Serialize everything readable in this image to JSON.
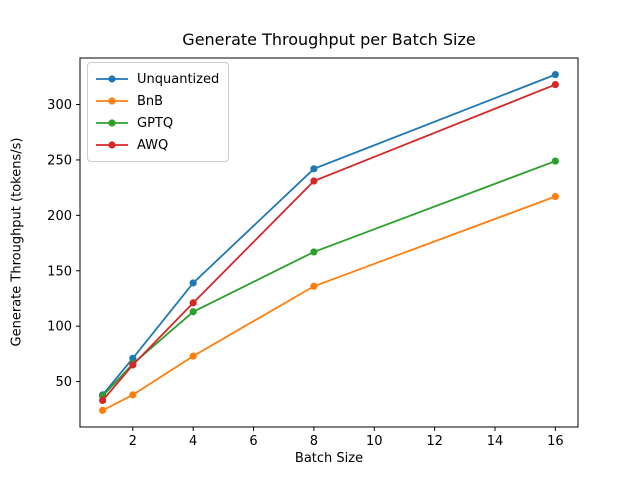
{
  "chart_data": {
    "type": "line",
    "title": "Generate Throughput per Batch Size",
    "xlabel": "Batch Size",
    "ylabel": "Generate Throughput (tokens/s)",
    "x": [
      1,
      2,
      4,
      8,
      16
    ],
    "series": [
      {
        "name": "Unquantized",
        "color": "#1f77b4",
        "values": [
          38,
          71,
          139,
          242,
          327
        ]
      },
      {
        "name": "BnB",
        "color": "#ff7f0e",
        "values": [
          24,
          38,
          73,
          136,
          217
        ]
      },
      {
        "name": "GPTQ",
        "color": "#2ca02c",
        "values": [
          37,
          66,
          113,
          167,
          249
        ]
      },
      {
        "name": "AWQ",
        "color": "#d62728",
        "values": [
          33,
          65,
          121,
          231,
          318
        ]
      }
    ],
    "xticks": [
      2,
      4,
      6,
      8,
      10,
      12,
      14,
      16
    ],
    "yticks": [
      50,
      100,
      150,
      200,
      250,
      300
    ],
    "xlim": [
      0.25,
      16.75
    ],
    "ylim": [
      9,
      342
    ],
    "legend_position": "upper left",
    "grid": false,
    "marker": "o",
    "axis_color": "#000000",
    "background_color": "#ffffff"
  }
}
